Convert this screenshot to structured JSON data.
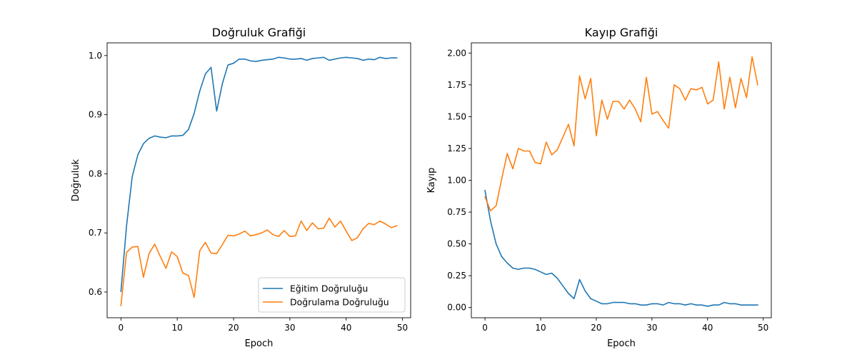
{
  "figure": {
    "background": "#ffffff"
  },
  "chart_data": [
    {
      "type": "line",
      "title": "Doğruluk Grafiği",
      "xlabel": "Epoch",
      "ylabel": "Doğruluk",
      "xlim": [
        -2.45,
        51.45
      ],
      "ylim": [
        0.5565,
        1.0215
      ],
      "xticks": [
        0,
        10,
        20,
        30,
        40,
        50
      ],
      "xtick_labels": [
        "0",
        "10",
        "20",
        "30",
        "40",
        "50"
      ],
      "yticks": [
        0.6,
        0.7,
        0.8,
        0.9,
        1.0
      ],
      "ytick_labels": [
        "0.6",
        "0.7",
        "0.8",
        "0.9",
        "1.0"
      ],
      "grid": false,
      "legend": {
        "location": "lower-right"
      },
      "x": [
        0,
        1,
        2,
        3,
        4,
        5,
        6,
        7,
        8,
        9,
        10,
        11,
        12,
        13,
        14,
        15,
        16,
        17,
        18,
        19,
        20,
        21,
        22,
        23,
        24,
        25,
        26,
        27,
        28,
        29,
        30,
        31,
        32,
        33,
        34,
        35,
        36,
        37,
        38,
        39,
        40,
        41,
        42,
        43,
        44,
        45,
        46,
        47,
        48,
        49
      ],
      "series": [
        {
          "name": "Eğitim Doğruluğu",
          "color": "#1f77b4",
          "values": [
            0.601,
            0.712,
            0.795,
            0.832,
            0.851,
            0.86,
            0.864,
            0.862,
            0.861,
            0.864,
            0.864,
            0.865,
            0.875,
            0.902,
            0.94,
            0.969,
            0.98,
            0.906,
            0.952,
            0.984,
            0.987,
            0.994,
            0.994,
            0.991,
            0.99,
            0.992,
            0.993,
            0.994,
            0.997,
            0.996,
            0.994,
            0.994,
            0.995,
            0.992,
            0.995,
            0.996,
            0.997,
            0.992,
            0.994,
            0.996,
            0.997,
            0.996,
            0.995,
            0.992,
            0.994,
            0.993,
            0.997,
            0.995,
            0.996,
            0.996
          ]
        },
        {
          "name": "Doğrulama Doğruluğu",
          "color": "#ff7f0e",
          "values": [
            0.577,
            0.667,
            0.676,
            0.677,
            0.625,
            0.665,
            0.681,
            0.66,
            0.64,
            0.668,
            0.66,
            0.632,
            0.628,
            0.591,
            0.67,
            0.684,
            0.666,
            0.665,
            0.68,
            0.696,
            0.695,
            0.698,
            0.703,
            0.695,
            0.697,
            0.7,
            0.705,
            0.697,
            0.694,
            0.704,
            0.694,
            0.695,
            0.72,
            0.704,
            0.717,
            0.707,
            0.708,
            0.725,
            0.71,
            0.72,
            0.703,
            0.687,
            0.692,
            0.707,
            0.716,
            0.714,
            0.72,
            0.715,
            0.709,
            0.712
          ]
        }
      ]
    },
    {
      "type": "line",
      "title": "Kayıp Grafiği",
      "xlabel": "Epoch",
      "ylabel": "Kayıp",
      "xlim": [
        -2.45,
        51.45
      ],
      "ylim": [
        -0.08,
        2.08
      ],
      "xticks": [
        0,
        10,
        20,
        30,
        40,
        50
      ],
      "xtick_labels": [
        "0",
        "10",
        "20",
        "30",
        "40",
        "50"
      ],
      "yticks": [
        0.0,
        0.25,
        0.5,
        0.75,
        1.0,
        1.25,
        1.5,
        1.75,
        2.0
      ],
      "ytick_labels": [
        "0.00",
        "0.25",
        "0.50",
        "0.75",
        "1.00",
        "1.25",
        "1.50",
        "1.75",
        "2.00"
      ],
      "grid": false,
      "x": [
        0,
        1,
        2,
        3,
        4,
        5,
        6,
        7,
        8,
        9,
        10,
        11,
        12,
        13,
        14,
        15,
        16,
        17,
        18,
        19,
        20,
        21,
        22,
        23,
        24,
        25,
        26,
        27,
        28,
        29,
        30,
        31,
        32,
        33,
        34,
        35,
        36,
        37,
        38,
        39,
        40,
        41,
        42,
        43,
        44,
        45,
        46,
        47,
        48,
        49
      ],
      "series": [
        {
          "color": "#1f77b4",
          "values": [
            0.92,
            0.68,
            0.5,
            0.4,
            0.35,
            0.31,
            0.3,
            0.31,
            0.31,
            0.3,
            0.28,
            0.26,
            0.27,
            0.23,
            0.17,
            0.11,
            0.07,
            0.22,
            0.13,
            0.07,
            0.05,
            0.03,
            0.03,
            0.04,
            0.04,
            0.04,
            0.03,
            0.03,
            0.02,
            0.02,
            0.03,
            0.03,
            0.02,
            0.04,
            0.03,
            0.03,
            0.02,
            0.03,
            0.02,
            0.02,
            0.01,
            0.02,
            0.02,
            0.04,
            0.03,
            0.03,
            0.02,
            0.02,
            0.02,
            0.02
          ]
        },
        {
          "color": "#ff7f0e",
          "values": [
            0.87,
            0.76,
            0.8,
            1.01,
            1.21,
            1.09,
            1.25,
            1.23,
            1.23,
            1.14,
            1.13,
            1.3,
            1.2,
            1.24,
            1.34,
            1.44,
            1.27,
            1.82,
            1.64,
            1.8,
            1.35,
            1.63,
            1.48,
            1.62,
            1.62,
            1.56,
            1.63,
            1.56,
            1.46,
            1.81,
            1.52,
            1.54,
            1.47,
            1.41,
            1.75,
            1.72,
            1.63,
            1.72,
            1.71,
            1.73,
            1.6,
            1.63,
            1.93,
            1.56,
            1.81,
            1.57,
            1.8,
            1.65,
            1.97,
            1.75
          ]
        }
      ]
    }
  ]
}
